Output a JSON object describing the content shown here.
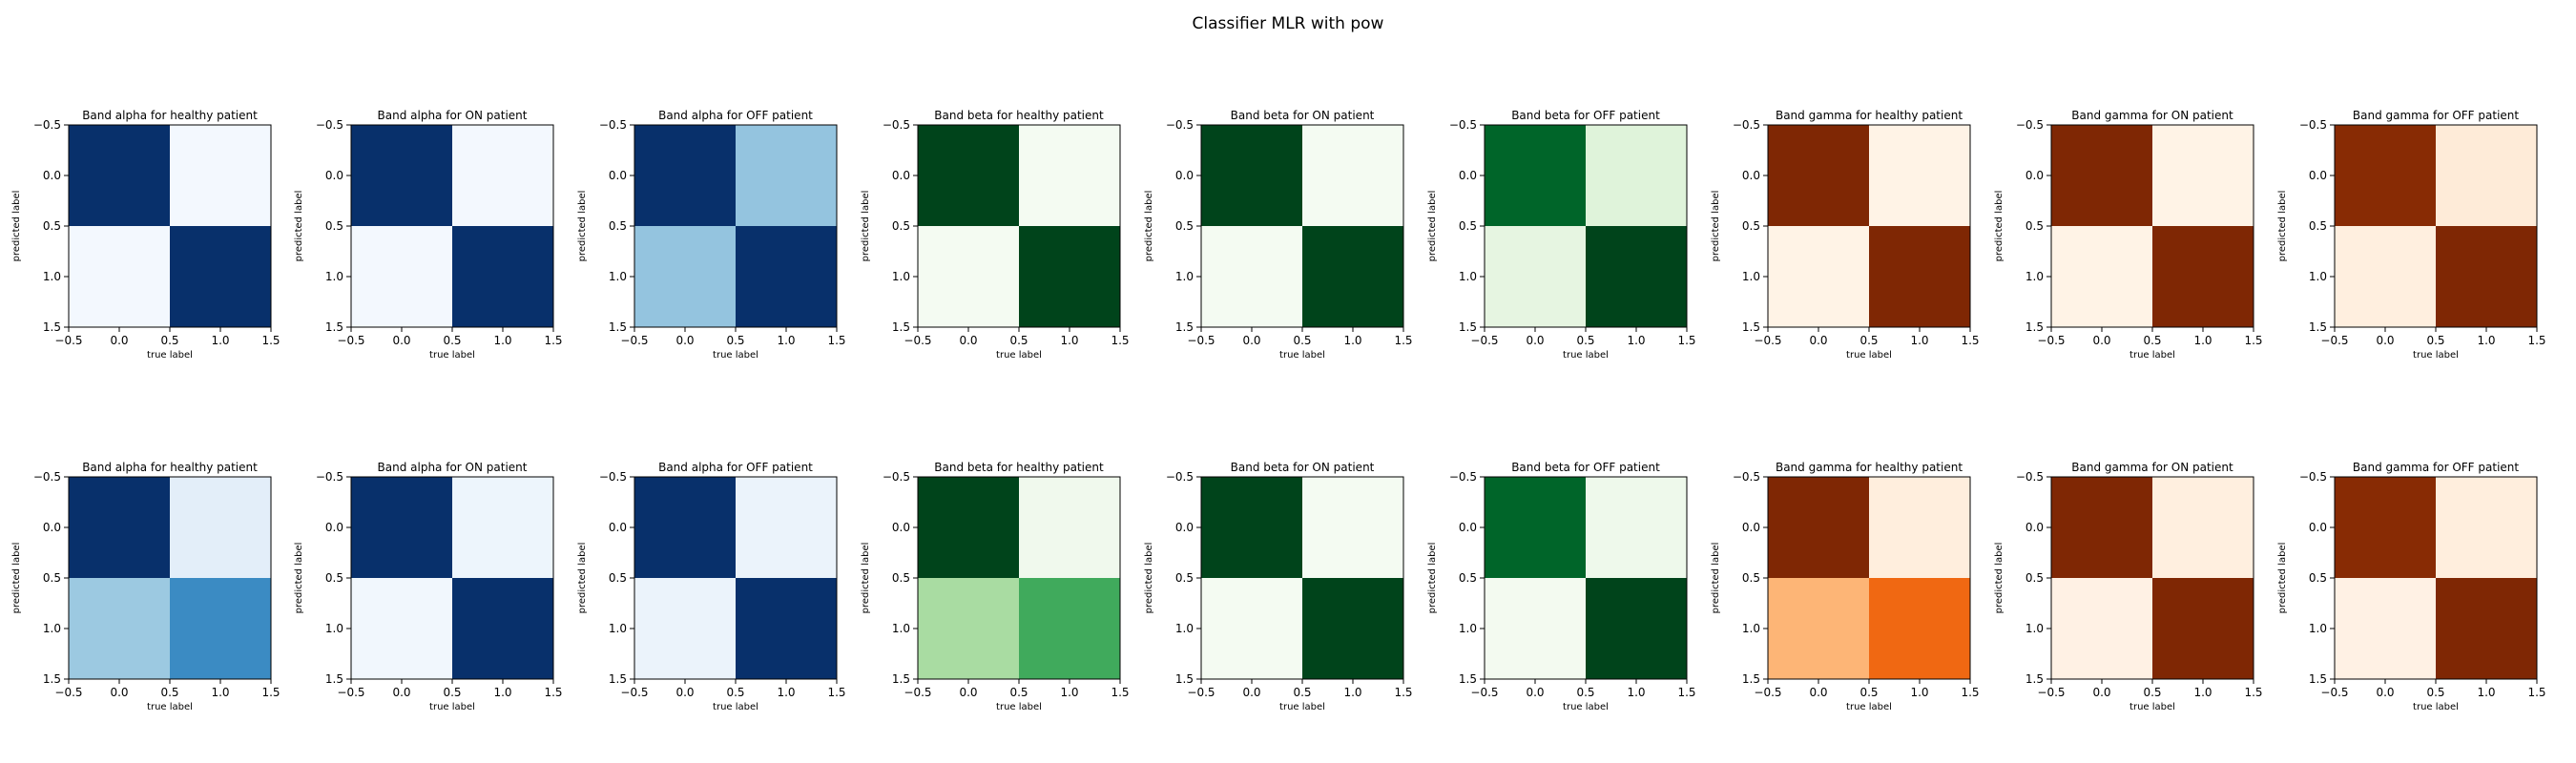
{
  "figure": {
    "title": "Classifier MLR with pow"
  },
  "chart_data": [
    {
      "type": "heatmap",
      "title": "Band alpha for healthy patient",
      "xlabel": "true label",
      "ylabel": "predicted label",
      "cmap": "Blues",
      "matrix": [
        [
          1.0,
          0.02
        ],
        [
          0.02,
          1.0
        ]
      ],
      "xlim": [
        -0.5,
        1.5
      ],
      "ylim": [
        1.5,
        -0.5
      ],
      "ticks": [
        "−0.5",
        "0.0",
        "0.5",
        "1.0",
        "1.5"
      ]
    },
    {
      "type": "heatmap",
      "title": "Band alpha for ON patient",
      "xlabel": "true label",
      "ylabel": "predicted label",
      "cmap": "Blues",
      "matrix": [
        [
          1.0,
          0.02
        ],
        [
          0.02,
          1.0
        ]
      ],
      "xlim": [
        -0.5,
        1.5
      ],
      "ylim": [
        1.5,
        -0.5
      ],
      "ticks": [
        "−0.5",
        "0.0",
        "0.5",
        "1.0",
        "1.5"
      ]
    },
    {
      "type": "heatmap",
      "title": "Band alpha for OFF patient",
      "xlabel": "true label",
      "ylabel": "predicted label",
      "cmap": "Blues",
      "matrix": [
        [
          1.0,
          0.4
        ],
        [
          0.4,
          1.0
        ]
      ],
      "xlim": [
        -0.5,
        1.5
      ],
      "ylim": [
        1.5,
        -0.5
      ],
      "ticks": [
        "−0.5",
        "0.0",
        "0.5",
        "1.0",
        "1.5"
      ]
    },
    {
      "type": "heatmap",
      "title": "Band beta for healthy patient",
      "xlabel": "true label",
      "ylabel": "predicted label",
      "cmap": "Greens",
      "matrix": [
        [
          1.0,
          0.02
        ],
        [
          0.02,
          1.0
        ]
      ],
      "xlim": [
        -0.5,
        1.5
      ],
      "ylim": [
        1.5,
        -0.5
      ],
      "ticks": [
        "−0.5",
        "0.0",
        "0.5",
        "1.0",
        "1.5"
      ]
    },
    {
      "type": "heatmap",
      "title": "Band beta for ON patient",
      "xlabel": "true label",
      "ylabel": "predicted label",
      "cmap": "Greens",
      "matrix": [
        [
          1.0,
          0.02
        ],
        [
          0.02,
          1.0
        ]
      ],
      "xlim": [
        -0.5,
        1.5
      ],
      "ylim": [
        1.5,
        -0.5
      ],
      "ticks": [
        "−0.5",
        "0.0",
        "0.5",
        "1.0",
        "1.5"
      ]
    },
    {
      "type": "heatmap",
      "title": "Band beta for OFF patient",
      "xlabel": "true label",
      "ylabel": "predicted label",
      "cmap": "Greens",
      "matrix": [
        [
          0.9,
          0.15
        ],
        [
          0.12,
          1.0
        ]
      ],
      "xlim": [
        -0.5,
        1.5
      ],
      "ylim": [
        1.5,
        -0.5
      ],
      "ticks": [
        "−0.5",
        "0.0",
        "0.5",
        "1.0",
        "1.5"
      ]
    },
    {
      "type": "heatmap",
      "title": "Band gamma for healthy patient",
      "xlabel": "true label",
      "ylabel": "predicted label",
      "cmap": "Oranges",
      "matrix": [
        [
          1.0,
          0.02
        ],
        [
          0.02,
          1.0
        ]
      ],
      "xlim": [
        -0.5,
        1.5
      ],
      "ylim": [
        1.5,
        -0.5
      ],
      "ticks": [
        "−0.5",
        "0.0",
        "0.5",
        "1.0",
        "1.5"
      ]
    },
    {
      "type": "heatmap",
      "title": "Band gamma for ON patient",
      "xlabel": "true label",
      "ylabel": "predicted label",
      "cmap": "Oranges",
      "matrix": [
        [
          1.0,
          0.02
        ],
        [
          0.02,
          1.0
        ]
      ],
      "xlim": [
        -0.5,
        1.5
      ],
      "ylim": [
        1.5,
        -0.5
      ],
      "ticks": [
        "−0.5",
        "0.0",
        "0.5",
        "1.0",
        "1.5"
      ]
    },
    {
      "type": "heatmap",
      "title": "Band gamma for OFF patient",
      "xlabel": "true label",
      "ylabel": "predicted label",
      "cmap": "Oranges",
      "matrix": [
        [
          0.97,
          0.08
        ],
        [
          0.05,
          1.0
        ]
      ],
      "xlim": [
        -0.5,
        1.5
      ],
      "ylim": [
        1.5,
        -0.5
      ],
      "ticks": [
        "−0.5",
        "0.0",
        "0.5",
        "1.0",
        "1.5"
      ]
    },
    {
      "type": "heatmap",
      "title": "Band alpha for healthy patient",
      "xlabel": "true label",
      "ylabel": "predicted label",
      "cmap": "Blues",
      "matrix": [
        [
          1.0,
          0.1
        ],
        [
          0.38,
          0.65
        ]
      ],
      "xlim": [
        -0.5,
        1.5
      ],
      "ylim": [
        1.5,
        -0.5
      ],
      "ticks": [
        "−0.5",
        "0.0",
        "0.5",
        "1.0",
        "1.5"
      ]
    },
    {
      "type": "heatmap",
      "title": "Band alpha for ON patient",
      "xlabel": "true label",
      "ylabel": "predicted label",
      "cmap": "Blues",
      "matrix": [
        [
          1.0,
          0.05
        ],
        [
          0.03,
          1.0
        ]
      ],
      "xlim": [
        -0.5,
        1.5
      ],
      "ylim": [
        1.5,
        -0.5
      ],
      "ticks": [
        "−0.5",
        "0.0",
        "0.5",
        "1.0",
        "1.5"
      ]
    },
    {
      "type": "heatmap",
      "title": "Band alpha for OFF patient",
      "xlabel": "true label",
      "ylabel": "predicted label",
      "cmap": "Blues",
      "matrix": [
        [
          1.0,
          0.06
        ],
        [
          0.06,
          1.0
        ]
      ],
      "xlim": [
        -0.5,
        1.5
      ],
      "ylim": [
        1.5,
        -0.5
      ],
      "ticks": [
        "−0.5",
        "0.0",
        "0.5",
        "1.0",
        "1.5"
      ]
    },
    {
      "type": "heatmap",
      "title": "Band beta for healthy patient",
      "xlabel": "true label",
      "ylabel": "predicted label",
      "cmap": "Greens",
      "matrix": [
        [
          1.0,
          0.05
        ],
        [
          0.35,
          0.63
        ]
      ],
      "xlim": [
        -0.5,
        1.5
      ],
      "ylim": [
        1.5,
        -0.5
      ],
      "ticks": [
        "−0.5",
        "0.0",
        "0.5",
        "1.0",
        "1.5"
      ]
    },
    {
      "type": "heatmap",
      "title": "Band beta for ON patient",
      "xlabel": "true label",
      "ylabel": "predicted label",
      "cmap": "Greens",
      "matrix": [
        [
          1.0,
          0.02
        ],
        [
          0.02,
          1.0
        ]
      ],
      "xlim": [
        -0.5,
        1.5
      ],
      "ylim": [
        1.5,
        -0.5
      ],
      "ticks": [
        "−0.5",
        "0.0",
        "0.5",
        "1.0",
        "1.5"
      ]
    },
    {
      "type": "heatmap",
      "title": "Band beta for OFF patient",
      "xlabel": "true label",
      "ylabel": "predicted label",
      "cmap": "Greens",
      "matrix": [
        [
          0.9,
          0.06
        ],
        [
          0.03,
          1.0
        ]
      ],
      "xlim": [
        -0.5,
        1.5
      ],
      "ylim": [
        1.5,
        -0.5
      ],
      "ticks": [
        "−0.5",
        "0.0",
        "0.5",
        "1.0",
        "1.5"
      ]
    },
    {
      "type": "heatmap",
      "title": "Band gamma for healthy patient",
      "xlabel": "true label",
      "ylabel": "predicted label",
      "cmap": "Oranges",
      "matrix": [
        [
          1.0,
          0.06
        ],
        [
          0.35,
          0.63
        ]
      ],
      "xlim": [
        -0.5,
        1.5
      ],
      "ylim": [
        1.5,
        -0.5
      ],
      "ticks": [
        "−0.5",
        "0.0",
        "0.5",
        "1.0",
        "1.5"
      ]
    },
    {
      "type": "heatmap",
      "title": "Band gamma for ON patient",
      "xlabel": "true label",
      "ylabel": "predicted label",
      "cmap": "Oranges",
      "matrix": [
        [
          1.0,
          0.05
        ],
        [
          0.03,
          1.0
        ]
      ],
      "xlim": [
        -0.5,
        1.5
      ],
      "ylim": [
        1.5,
        -0.5
      ],
      "ticks": [
        "−0.5",
        "0.0",
        "0.5",
        "1.0",
        "1.5"
      ]
    },
    {
      "type": "heatmap",
      "title": "Band gamma for OFF patient",
      "xlabel": "true label",
      "ylabel": "predicted label",
      "cmap": "Oranges",
      "matrix": [
        [
          0.97,
          0.06
        ],
        [
          0.03,
          1.0
        ]
      ],
      "xlim": [
        -0.5,
        1.5
      ],
      "ylim": [
        1.5,
        -0.5
      ],
      "ticks": [
        "−0.5",
        "0.0",
        "0.5",
        "1.0",
        "1.5"
      ]
    }
  ],
  "colormaps": {
    "Blues": [
      "#f7fbff",
      "#deebf7",
      "#c6dbef",
      "#9ecae1",
      "#6baed6",
      "#4292c6",
      "#2171b5",
      "#08519c",
      "#08306b"
    ],
    "Greens": [
      "#f7fcf5",
      "#e5f5e0",
      "#c7e9c0",
      "#a1d99b",
      "#74c476",
      "#41ab5d",
      "#238b45",
      "#006d2c",
      "#00441b"
    ],
    "Oranges": [
      "#fff5eb",
      "#fee6ce",
      "#fdd0a2",
      "#fdae6b",
      "#fd8d3c",
      "#f16913",
      "#d94801",
      "#a63603",
      "#7f2704"
    ]
  }
}
